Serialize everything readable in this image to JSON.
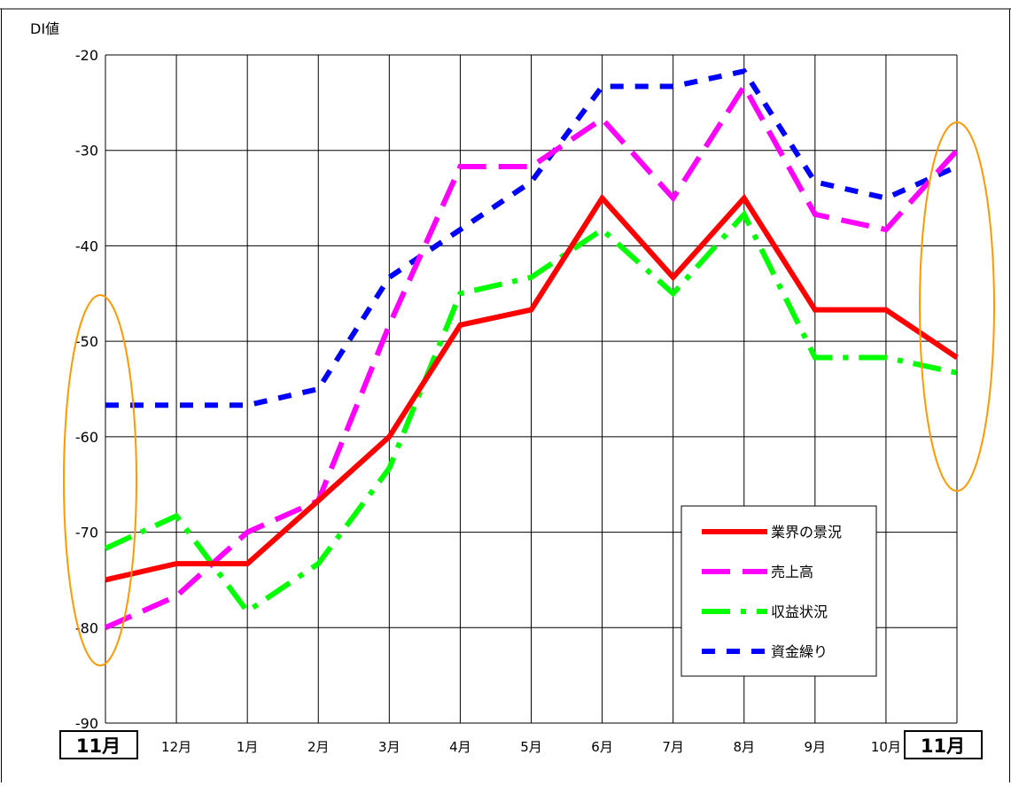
{
  "chart_data": {
    "type": "line",
    "title": "",
    "xlabel": "",
    "ylabel": "DI値",
    "ylim": [
      -90,
      -20
    ],
    "yticks": [
      "-20",
      "-30",
      "-40",
      "-50",
      "-60",
      "-70",
      "-80",
      "-90"
    ],
    "categories": [
      "11月",
      "12月",
      "1月",
      "2月",
      "3月",
      "4月",
      "5月",
      "6月",
      "7月",
      "8月",
      "9月",
      "10月",
      "11月"
    ],
    "grid": true,
    "legend_position": "bottom-right",
    "series": [
      {
        "name": "業界の景況",
        "color": "#ff0000",
        "style": "solid",
        "values": [
          -75,
          -73.3,
          -73.3,
          -66.7,
          -60,
          -48.3,
          -46.7,
          -35,
          -43.3,
          -35,
          -46.7,
          -46.7,
          -51.7
        ]
      },
      {
        "name": "売上高",
        "color": "#ff00ff",
        "style": "long-dash",
        "values": [
          -80,
          -76.7,
          -70,
          -66.7,
          -48.3,
          -31.7,
          -31.7,
          -26.7,
          -35,
          -23.3,
          -36.7,
          -38.3,
          -30
        ]
      },
      {
        "name": "収益状況",
        "color": "#00ff00",
        "style": "dash-dot",
        "values": [
          -71.7,
          -68.3,
          -78.3,
          -73.3,
          -63.3,
          -45,
          -43.3,
          -38.3,
          -45,
          -36.7,
          -51.7,
          -51.7,
          -53.3
        ]
      },
      {
        "name": "資金繰り",
        "color": "#0000ff",
        "style": "short-dash",
        "values": [
          -56.7,
          -56.7,
          -56.7,
          -55,
          -43.3,
          -38.3,
          -33.3,
          -23.3,
          -23.3,
          -21.7,
          -33.3,
          -35,
          -31.7
        ]
      }
    ],
    "highlights": {
      "color": "#ff9900",
      "marked_categories": [
        "11月",
        "11月"
      ]
    }
  }
}
